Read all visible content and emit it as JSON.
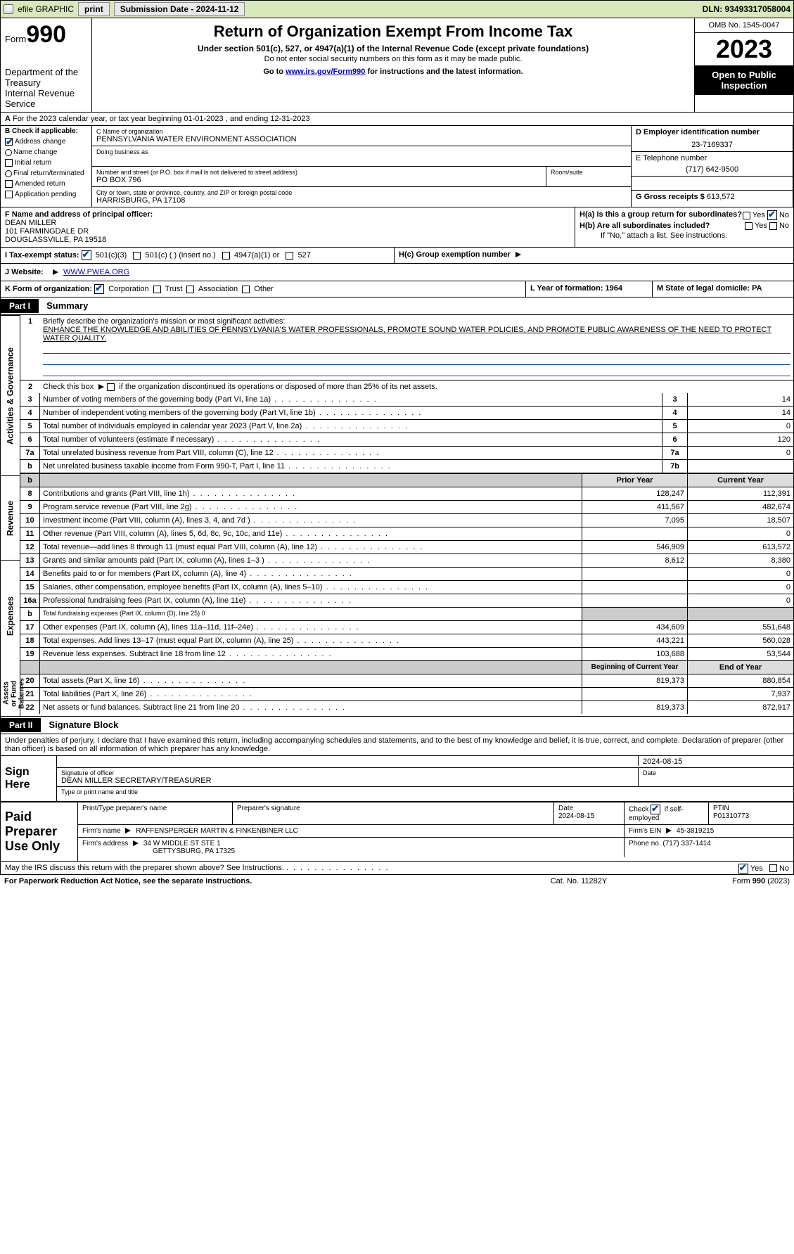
{
  "topbar": {
    "efile_label": "efile GRAPHIC",
    "print_label": "print",
    "submission_label": "Submission Date - 2024-11-12",
    "dln_label": "DLN: 93493317058004"
  },
  "header": {
    "form_prefix": "Form",
    "form_number": "990",
    "dept": "Department of the Treasury",
    "irs": "Internal Revenue Service",
    "title": "Return of Organization Exempt From Income Tax",
    "sub1": "Under section 501(c), 527, or 4947(a)(1) of the Internal Revenue Code (except private foundations)",
    "sub2": "Do not enter social security numbers on this form as it may be made public.",
    "sub3_prefix": "Go to ",
    "sub3_link": "www.irs.gov/Form990",
    "sub3_suffix": " for instructions and the latest information.",
    "omb": "OMB No. 1545-0047",
    "year": "2023",
    "open": "Open to Public Inspection"
  },
  "A": {
    "line": "For the 2023 calendar year, or tax year beginning 01-01-2023   , and ending 12-31-2023",
    "label_A": "A"
  },
  "B": {
    "hdr": "B Check if applicable:",
    "items": [
      {
        "label": "Address change",
        "on": true
      },
      {
        "label": "Name change",
        "on": false
      },
      {
        "label": "Initial return",
        "on": false
      },
      {
        "label": "Final return/terminated",
        "on": false
      },
      {
        "label": "Amended return",
        "on": false
      },
      {
        "label": "Application pending",
        "on": false
      }
    ]
  },
  "C": {
    "name_label": "C Name of organization",
    "name": "PENNSYLVANIA WATER ENVIRONMENT ASSOCIATION",
    "dba_label": "Doing business as",
    "addr_label": "Number and street (or P.O. box if mail is not delivered to street address)",
    "room_label": "Room/suite",
    "addr": "PO BOX 796",
    "city_label": "City or town, state or province, country, and ZIP or foreign postal code",
    "city": "HARRISBURG, PA  17108"
  },
  "D": {
    "label": "D Employer identification number",
    "val": "23-7169337"
  },
  "E": {
    "label": "E Telephone number",
    "val": "(717) 642-9500"
  },
  "G": {
    "label": "G Gross receipts $",
    "val": "613,572"
  },
  "F": {
    "label": "F  Name and address of principal officer:",
    "name": "DEAN MILLER",
    "addr1": "101 FARMINGDALE DR",
    "addr2": "DOUGLASSVILLE, PA  19518"
  },
  "H": {
    "a_label": "H(a)  Is this a group return for subordinates?",
    "a_yes": "Yes",
    "a_no": "No",
    "b_label": "H(b)  Are all subordinates included?",
    "b_yes": "Yes",
    "b_no": "No",
    "b_note": "If \"No,\" attach a list. See instructions.",
    "c_label": "H(c)  Group exemption number"
  },
  "I": {
    "label": "I    Tax-exempt status:",
    "opt1": "501(c)(3)",
    "opt2": "501(c) (   ) (insert no.)",
    "opt3": "4947(a)(1) or",
    "opt4": "527"
  },
  "J": {
    "label": "J    Website:",
    "val": "WWW.PWEA.ORG"
  },
  "K": {
    "label": "K Form of organization:",
    "opts": [
      "Corporation",
      "Trust",
      "Association",
      "Other"
    ]
  },
  "L": {
    "label": "L Year of formation: 1964"
  },
  "M": {
    "label": "M State of legal domicile: PA"
  },
  "part1": {
    "hdr": "Part I",
    "title": "Summary"
  },
  "summary": {
    "q1_label": "Briefly describe the organization's mission or most significant activities:",
    "q1_text": "ENHANCE THE KNOWLEDGE AND ABILITIES OF PENNSYLVANIA'S WATER PROFESSIONALS, PROMOTE SOUND WATER POLICIES, AND PROMOTE PUBLIC AWARENESS OF THE NEED TO PROTECT WATER QUALITY.",
    "q2": "Check this box      if the organization discontinued its operations or disposed of more than 25% of its net assets.",
    "lines_ag": [
      {
        "n": "3",
        "label": "Number of voting members of the governing body (Part VI, line 1a)",
        "ref": "3",
        "val": "14"
      },
      {
        "n": "4",
        "label": "Number of independent voting members of the governing body (Part VI, line 1b)",
        "ref": "4",
        "val": "14"
      },
      {
        "n": "5",
        "label": "Total number of individuals employed in calendar year 2023 (Part V, line 2a)",
        "ref": "5",
        "val": "0"
      },
      {
        "n": "6",
        "label": "Total number of volunteers (estimate if necessary)",
        "ref": "6",
        "val": "120"
      },
      {
        "n": "7a",
        "label": "Total unrelated business revenue from Part VIII, column (C), line 12",
        "ref": "7a",
        "val": "0"
      },
      {
        "n": "b",
        "label": "Net unrelated business taxable income from Form 990-T, Part I, line 11",
        "ref": "7b",
        "val": ""
      }
    ],
    "header_row": {
      "prior": "Prior Year",
      "current": "Current Year"
    },
    "revenue": [
      {
        "n": "8",
        "label": "Contributions and grants (Part VIII, line 1h)",
        "p": "128,247",
        "c": "112,391"
      },
      {
        "n": "9",
        "label": "Program service revenue (Part VIII, line 2g)",
        "p": "411,567",
        "c": "482,674"
      },
      {
        "n": "10",
        "label": "Investment income (Part VIII, column (A), lines 3, 4, and 7d )",
        "p": "7,095",
        "c": "18,507"
      },
      {
        "n": "11",
        "label": "Other revenue (Part VIII, column (A), lines 5, 6d, 8c, 9c, 10c, and 11e)",
        "p": "",
        "c": "0"
      },
      {
        "n": "12",
        "label": "Total revenue—add lines 8 through 11 (must equal Part VIII, column (A), line 12)",
        "p": "546,909",
        "c": "613,572"
      }
    ],
    "expenses": [
      {
        "n": "13",
        "label": "Grants and similar amounts paid (Part IX, column (A), lines 1–3 )",
        "p": "8,612",
        "c": "8,380"
      },
      {
        "n": "14",
        "label": "Benefits paid to or for members (Part IX, column (A), line 4)",
        "p": "",
        "c": "0"
      },
      {
        "n": "15",
        "label": "Salaries, other compensation, employee benefits (Part IX, column (A), lines 5–10)",
        "p": "",
        "c": "0"
      },
      {
        "n": "16a",
        "label": "Professional fundraising fees (Part IX, column (A), line 11e)",
        "p": "",
        "c": "0"
      }
    ],
    "exp_b": {
      "n": "b",
      "label": "Total fundraising expenses (Part IX, column (D), line 25) 0"
    },
    "expenses2": [
      {
        "n": "17",
        "label": "Other expenses (Part IX, column (A), lines 11a–11d, 11f–24e)",
        "p": "434,609",
        "c": "551,648"
      },
      {
        "n": "18",
        "label": "Total expenses. Add lines 13–17 (must equal Part IX, column (A), line 25)",
        "p": "443,221",
        "c": "560,028"
      },
      {
        "n": "19",
        "label": "Revenue less expenses. Subtract line 18 from line 12",
        "p": "103,688",
        "c": "53,544"
      }
    ],
    "na_header": {
      "prior": "Beginning of Current Year",
      "current": "End of Year"
    },
    "netassets": [
      {
        "n": "20",
        "label": "Total assets (Part X, line 16)",
        "p": "819,373",
        "c": "880,854"
      },
      {
        "n": "21",
        "label": "Total liabilities (Part X, line 26)",
        "p": "",
        "c": "7,937"
      },
      {
        "n": "22",
        "label": "Net assets or fund balances. Subtract line 21 from line 20",
        "p": "819,373",
        "c": "872,917"
      }
    ],
    "sidelabels": {
      "ag": "Activities & Governance",
      "rev": "Revenue",
      "exp": "Expenses",
      "na": "Net Assets or Fund Balances"
    }
  },
  "part2": {
    "hdr": "Part II",
    "title": "Signature Block"
  },
  "sig": {
    "declaration": "Under penalties of perjury, I declare that I have examined this return, including accompanying schedules and statements, and to the best of my knowledge and belief, it is true, correct, and complete. Declaration of preparer (other than officer) is based on all information of which preparer has any knowledge.",
    "sign_here": "Sign Here",
    "date": "2024-08-15",
    "sig_off": "Signature of officer",
    "sig_date_label": "Date",
    "name_title": "DEAN MILLER  SECRETARY/TREASURER",
    "name_label": "Type or print name and title"
  },
  "paid": {
    "label": "Paid Preparer Use Only",
    "h1": "Print/Type preparer's name",
    "h2": "Preparer's signature",
    "h3": "Date",
    "date": "2024-08-15",
    "h4_chk": "Check",
    "h4_if": "if self-employed",
    "h5": "PTIN",
    "ptin": "P01310773",
    "firm_name_label": "Firm's name",
    "firm_name": "RAFFENSPERGER MARTIN & FINKENBINER LLC",
    "firm_ein_label": "Firm's EIN",
    "firm_ein": "45-3819215",
    "firm_addr_label": "Firm's address",
    "firm_addr1": "34 W MIDDLE ST STE 1",
    "firm_addr2": "GETTYSBURG, PA  17325",
    "phone_label": "Phone no.",
    "phone": "(717) 337-1414"
  },
  "discuss": {
    "label": "May the IRS discuss this return with the preparer shown above? See Instructions.",
    "yes": "Yes",
    "no": "No"
  },
  "footer": {
    "pra": "For Paperwork Reduction Act Notice, see the separate instructions.",
    "cat": "Cat. No. 11282Y",
    "form": "Form 990 (2023)"
  }
}
